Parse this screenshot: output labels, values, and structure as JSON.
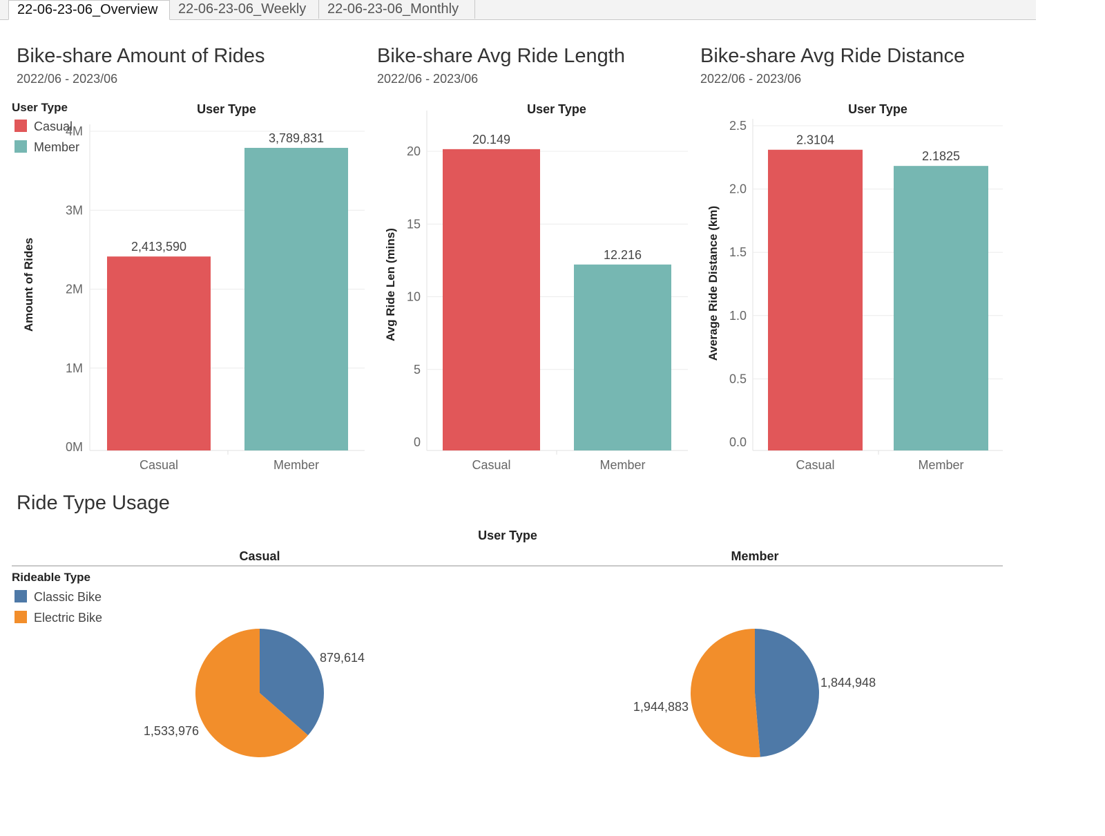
{
  "tabs": [
    {
      "label": "22-06-23-06_Overview",
      "active": true
    },
    {
      "label": "22-06-23-06_Weekly",
      "active": false
    },
    {
      "label": "22-06-23-06_Monthly",
      "active": false
    }
  ],
  "colors": {
    "casual": "#e15759",
    "member": "#76b7b2",
    "classic_bike": "#4e79a7",
    "electric_bike": "#f28e2b"
  },
  "legend_user_type": {
    "title": "User Type",
    "items": [
      {
        "label": "Casual",
        "color": "#e15759"
      },
      {
        "label": "Member",
        "color": "#76b7b2"
      }
    ]
  },
  "legend_rideable_type": {
    "title": "Rideable Type",
    "items": [
      {
        "label": "Classic Bike",
        "color": "#4e79a7"
      },
      {
        "label": "Electric Bike",
        "color": "#f28e2b"
      }
    ]
  },
  "ride_type_section": {
    "title": "Ride Type Usage",
    "header": "User Type",
    "columns": [
      "Casual",
      "Member"
    ]
  },
  "chart_data": [
    {
      "type": "bar",
      "title": "Bike-share Amount of Rides",
      "subtitle": "2022/06 - 2023/06",
      "header": "User Type",
      "ylabel": "Amount of Rides",
      "categories": [
        "Casual",
        "Member"
      ],
      "values": [
        2413590,
        3789831
      ],
      "value_labels": [
        "2,413,590",
        "3,789,831"
      ],
      "colors": [
        "#e15759",
        "#76b7b2"
      ],
      "ylim": [
        0,
        4000000
      ],
      "yticks": [
        0,
        1000000,
        2000000,
        3000000,
        4000000
      ],
      "ytick_labels": [
        "0M",
        "1M",
        "2M",
        "3M",
        "4M"
      ],
      "grid": true
    },
    {
      "type": "bar",
      "title": "Bike-share Avg Ride Length",
      "subtitle": "2022/06 - 2023/06",
      "header": "User Type",
      "ylabel": "Avg Ride Len (mins)",
      "categories": [
        "Casual",
        "Member"
      ],
      "values": [
        20.149,
        12.216
      ],
      "value_labels": [
        "20.149",
        "12.216"
      ],
      "colors": [
        "#e15759",
        "#76b7b2"
      ],
      "ylim": [
        0,
        22
      ],
      "yticks": [
        0,
        5,
        10,
        15,
        20
      ],
      "ytick_labels": [
        "0",
        "5",
        "10",
        "15",
        "20"
      ],
      "grid": true
    },
    {
      "type": "bar",
      "title": "Bike-share Avg Ride Distance",
      "subtitle": "2022/06 - 2023/06",
      "header": "User Type",
      "ylabel": "Average Ride Distance (km)",
      "categories": [
        "Casual",
        "Member"
      ],
      "values": [
        2.3104,
        2.1825
      ],
      "value_labels": [
        "2.3104",
        "2.1825"
      ],
      "colors": [
        "#e15759",
        "#76b7b2"
      ],
      "ylim": [
        0,
        2.5
      ],
      "yticks": [
        0,
        0.5,
        1.0,
        1.5,
        2.0,
        2.5
      ],
      "ytick_labels": [
        "0.0",
        "0.5",
        "1.0",
        "1.5",
        "2.0",
        "2.5"
      ],
      "grid": true
    },
    {
      "type": "pie",
      "title": "",
      "group": "Casual",
      "slices": [
        {
          "label": "Classic Bike",
          "value": 879614,
          "value_label": "879,614",
          "color": "#4e79a7"
        },
        {
          "label": "Electric Bike",
          "value": 1533976,
          "value_label": "1,533,976",
          "color": "#f28e2b"
        }
      ]
    },
    {
      "type": "pie",
      "title": "",
      "group": "Member",
      "slices": [
        {
          "label": "Classic Bike",
          "value": 1844948,
          "value_label": "1,844,948",
          "color": "#4e79a7"
        },
        {
          "label": "Electric Bike",
          "value": 1944883,
          "value_label": "1,944,883",
          "color": "#f28e2b"
        }
      ]
    }
  ]
}
